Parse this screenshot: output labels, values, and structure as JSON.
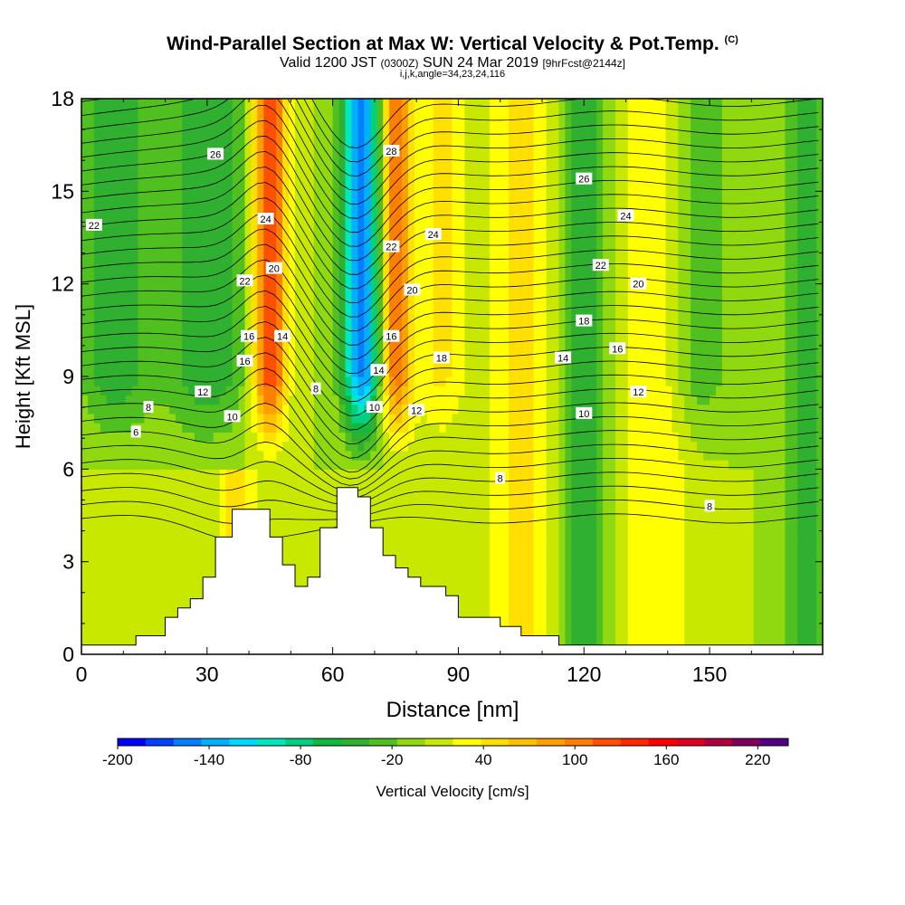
{
  "title": {
    "main": "Wind-Parallel Section at Max W: Vertical Velocity & Pot.Temp.",
    "copyright": "(C)",
    "valid_prefix": "Valid 1200 JST",
    "utc": "(0300Z)",
    "valid_date": "SUN 24 Mar 2019",
    "forecast": "[9hrFcst@2144z]",
    "params": "i,j,k,angle=34,23,24,116"
  },
  "chart_data": {
    "type": "heatmap",
    "xlabel": "Distance [nm]",
    "ylabel": "Height [Kft MSL]",
    "xlim": [
      0,
      177
    ],
    "ylim": [
      0,
      18
    ],
    "x_ticks": [
      "0",
      "30",
      "60",
      "90",
      "120",
      "150"
    ],
    "y_ticks": [
      "0",
      "3",
      "6",
      "9",
      "12",
      "15",
      "18"
    ],
    "colorbar": {
      "label": "Vertical Velocity [cm/s]",
      "tick_labels": [
        "-200",
        "-140",
        "-80",
        "-20",
        "40",
        "100",
        "160",
        "220"
      ],
      "levels_min": -200,
      "levels_max": 240,
      "step": 20,
      "colors": [
        "#0000ff",
        "#0040ff",
        "#0080ff",
        "#00b0ff",
        "#00d8ff",
        "#00e8c0",
        "#00d080",
        "#10b840",
        "#30b030",
        "#50c020",
        "#90d810",
        "#c8e800",
        "#ffff00",
        "#ffe000",
        "#ffc000",
        "#ffa000",
        "#ff8000",
        "#ff5000",
        "#ff2800",
        "#ff0000",
        "#e00020",
        "#b00040",
        "#800060",
        "#500080"
      ]
    },
    "terrain_profile": [
      [
        0,
        0.3
      ],
      [
        13,
        0.3
      ],
      [
        13,
        0.6
      ],
      [
        20,
        0.6
      ],
      [
        20,
        1.2
      ],
      [
        23,
        1.2
      ],
      [
        23,
        1.5
      ],
      [
        26,
        1.5
      ],
      [
        26,
        1.8
      ],
      [
        29,
        1.8
      ],
      [
        29,
        2.5
      ],
      [
        32,
        2.5
      ],
      [
        32,
        3.8
      ],
      [
        36,
        3.8
      ],
      [
        36,
        4.7
      ],
      [
        45,
        4.7
      ],
      [
        45,
        3.8
      ],
      [
        48,
        3.8
      ],
      [
        48,
        2.9
      ],
      [
        51,
        2.9
      ],
      [
        51,
        2.2
      ],
      [
        54,
        2.2
      ],
      [
        54,
        2.5
      ],
      [
        57,
        2.5
      ],
      [
        57,
        4.1
      ],
      [
        61,
        4.1
      ],
      [
        61,
        5.4
      ],
      [
        66,
        5.4
      ],
      [
        66,
        5.1
      ],
      [
        69,
        5.1
      ],
      [
        69,
        4.1
      ],
      [
        72,
        4.1
      ],
      [
        72,
        3.2
      ],
      [
        75,
        3.2
      ],
      [
        75,
        2.8
      ],
      [
        78,
        2.8
      ],
      [
        78,
        2.5
      ],
      [
        81,
        2.5
      ],
      [
        81,
        2.2
      ],
      [
        87,
        2.2
      ],
      [
        87,
        1.9
      ],
      [
        90,
        1.9
      ],
      [
        90,
        1.2
      ],
      [
        100,
        1.2
      ],
      [
        100,
        0.9
      ],
      [
        105,
        0.9
      ],
      [
        105,
        0.6
      ],
      [
        114,
        0.6
      ],
      [
        114,
        0.3
      ],
      [
        177,
        0.3
      ]
    ],
    "theta_labels": [
      {
        "text": "6",
        "x": 13,
        "y": 7.2
      },
      {
        "text": "8",
        "x": 16,
        "y": 8
      },
      {
        "text": "10",
        "x": 36,
        "y": 7.7
      },
      {
        "text": "12",
        "x": 29,
        "y": 8.5
      },
      {
        "text": "16",
        "x": 39,
        "y": 9.5
      },
      {
        "text": "16",
        "x": 40,
        "y": 10.3
      },
      {
        "text": "14",
        "x": 48,
        "y": 10.3
      },
      {
        "text": "8",
        "x": 56,
        "y": 8.6
      },
      {
        "text": "22",
        "x": 39,
        "y": 12.1
      },
      {
        "text": "20",
        "x": 46,
        "y": 12.5
      },
      {
        "text": "24",
        "x": 44,
        "y": 14.1
      },
      {
        "text": "26",
        "x": 32,
        "y": 16.2
      },
      {
        "text": "22",
        "x": 3,
        "y": 13.9
      },
      {
        "text": "28",
        "x": 74,
        "y": 16.3
      },
      {
        "text": "22",
        "x": 74,
        "y": 13.2
      },
      {
        "text": "24",
        "x": 84,
        "y": 13.6
      },
      {
        "text": "20",
        "x": 79,
        "y": 11.8
      },
      {
        "text": "16",
        "x": 74,
        "y": 10.3
      },
      {
        "text": "14",
        "x": 71,
        "y": 9.2
      },
      {
        "text": "10",
        "x": 70,
        "y": 8
      },
      {
        "text": "12",
        "x": 80,
        "y": 7.9
      },
      {
        "text": "18",
        "x": 86,
        "y": 9.6
      },
      {
        "text": "8",
        "x": 100,
        "y": 5.7
      },
      {
        "text": "26",
        "x": 120,
        "y": 15.4
      },
      {
        "text": "24",
        "x": 130,
        "y": 14.2
      },
      {
        "text": "22",
        "x": 124,
        "y": 12.6
      },
      {
        "text": "20",
        "x": 133,
        "y": 12
      },
      {
        "text": "18",
        "x": 120,
        "y": 10.8
      },
      {
        "text": "16",
        "x": 128,
        "y": 9.9
      },
      {
        "text": "14",
        "x": 115,
        "y": 9.6
      },
      {
        "text": "12",
        "x": 133,
        "y": 8.5
      },
      {
        "text": "10",
        "x": 120,
        "y": 7.8
      },
      {
        "text": "8",
        "x": 150,
        "y": 4.8
      }
    ]
  }
}
